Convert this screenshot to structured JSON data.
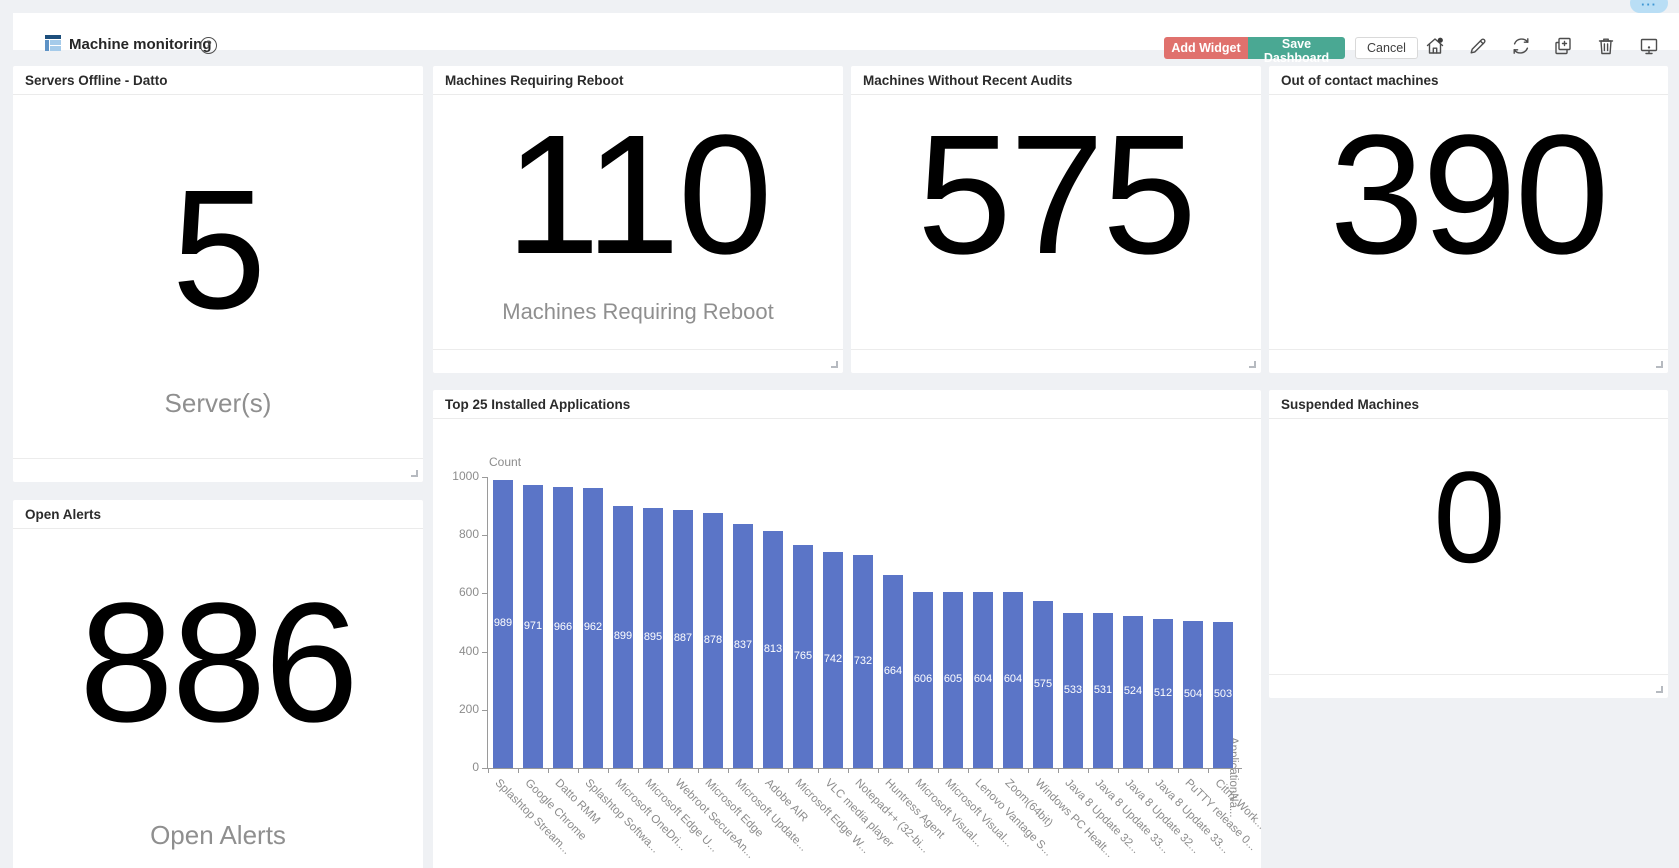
{
  "topbar": {
    "overflow_pill": "···"
  },
  "header": {
    "title": "Machine monitoring",
    "help_glyph": "?",
    "buttons": {
      "add_widget": "Add Widget",
      "save_dashboard": "Save Dashboard",
      "cancel": "Cancel"
    },
    "icons": [
      "home-notification",
      "edit-pencil",
      "refresh",
      "duplicate-widget",
      "delete-trash",
      "present-monitor"
    ]
  },
  "widgets": {
    "servers_offline": {
      "title": "Servers Offline - Datto",
      "value": "5",
      "label": "Server(s)"
    },
    "machines_requiring_reboot": {
      "title": "Machines Requiring Reboot",
      "value": "110",
      "label": "Machines Requiring Reboot"
    },
    "machines_without_recent_audits": {
      "title": "Machines Without Recent Audits",
      "value": "575"
    },
    "out_of_contact": {
      "title": "Out of contact machines",
      "value": "390"
    },
    "open_alerts": {
      "title": "Open Alerts",
      "value": "886",
      "label": "Open Alerts"
    },
    "top25": {
      "title": "Top 25 Installed Applications"
    },
    "suspended": {
      "title": "Suspended Machines",
      "value": "0"
    }
  },
  "chart_data": {
    "type": "bar",
    "title": "Top 25 Installed Applications",
    "ylabel": "Count",
    "xlabel": "ApplicationNa...",
    "ylim": [
      0,
      1000
    ],
    "yticks": [
      0,
      200,
      400,
      600,
      800,
      1000
    ],
    "bar_color": "#5b75c7",
    "legend": null,
    "grid": false,
    "categories": [
      "Splashtop Stream...",
      "Google Chrome",
      "Datto RMM",
      "Splashtop Softwa...",
      "Microsoft OneDri...",
      "Microsoft Edge U...",
      "Webroot SecureAn...",
      "Microsoft Edge",
      "Microsoft Update...",
      "Adobe AIR",
      "Microsoft Edge W...",
      "VLC media player",
      "Notepad++ (32-bi...",
      "Huntress Agent",
      "Microsoft Visual...",
      "Microsoft Visual...",
      "Lenovo Vantage S...",
      "Zoom(64bit)",
      "Windows PC Healt...",
      "Java 8 Update 32...",
      "Java 8 Update 33...",
      "Java 8 Update 32...",
      "Java 8 Update 33...",
      "PuTTY release 0...",
      "Citrix Work..."
    ],
    "values": [
      989,
      971,
      966,
      962,
      899,
      895,
      887,
      878,
      837,
      813,
      765,
      742,
      732,
      664,
      606,
      605,
      604,
      604,
      575,
      533,
      531,
      524,
      512,
      504,
      503
    ]
  },
  "colors": {
    "page_bg": "#eff1f4",
    "card_bg": "#ffffff",
    "accent_add": "#e0716d",
    "accent_save": "#4aa893",
    "bar": "#5b75c7",
    "gray_text": "#8f8f8f"
  }
}
